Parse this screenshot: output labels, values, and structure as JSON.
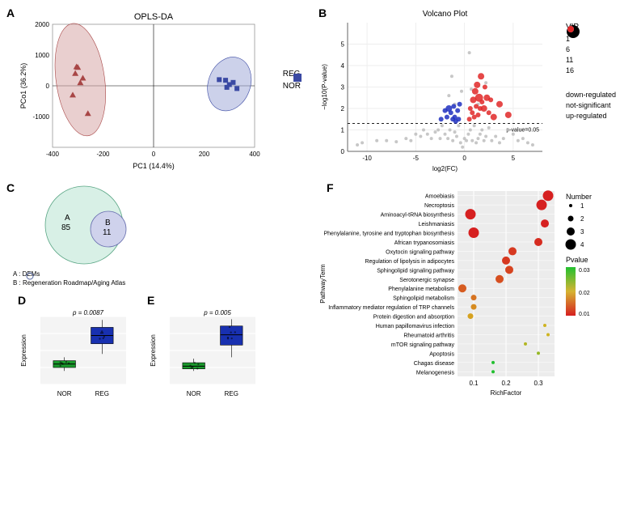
{
  "panelA": {
    "title": "OPLS-DA",
    "xlabel": "PC1 (14.4%)",
    "ylabel": "PCo1 (36.2%)",
    "xlim": [
      -400,
      400
    ],
    "ylim": [
      -2000,
      2000
    ],
    "xticks": [
      -400,
      -200,
      0,
      200,
      400
    ],
    "yticks": [
      -1000,
      0,
      1000,
      2000
    ],
    "reg_color": "#a84646",
    "nor_color": "#3a49a3",
    "reg_fill": "#d7a8a8",
    "nor_fill": "#a3abd9",
    "reg_points": [
      [
        -300,
        600
      ],
      [
        -310,
        400
      ],
      [
        -280,
        250
      ],
      [
        -305,
        620
      ],
      [
        -290,
        100
      ],
      [
        -320,
        -300
      ],
      [
        -260,
        -900
      ]
    ],
    "nor_points": [
      [
        260,
        200
      ],
      [
        285,
        180
      ],
      [
        300,
        40
      ],
      [
        315,
        110
      ],
      [
        330,
        -90
      ],
      [
        290,
        -50
      ]
    ],
    "legend": {
      "reg": "REG",
      "nor": "NOR"
    }
  },
  "panelB": {
    "title": "Volcano Plot",
    "xlabel": "log2(FC)",
    "ylabel": "−log10(P-value)",
    "xlim": [
      -12,
      8
    ],
    "ylim": [
      0,
      6
    ],
    "xticks": [
      -10,
      -5,
      0,
      5
    ],
    "yticks": [
      0,
      1,
      2,
      3,
      4,
      5
    ],
    "pline": 1.3,
    "pline_label": "p-value=0.05",
    "colors": {
      "down": "#2030c0",
      "not": "#bdbdbd",
      "up": "#e02828"
    },
    "vip_legend": {
      "title": "VIP",
      "levels": [
        {
          "v": 1,
          "r": 2.5
        },
        {
          "v": 6,
          "r": 4
        },
        {
          "v": 11,
          "r": 6
        },
        {
          "v": 16,
          "r": 8
        }
      ]
    },
    "col_legend": [
      [
        "down-regulated",
        "#2030c0"
      ],
      [
        "not-significant",
        "#bdbdbd"
      ],
      [
        "up-regulated",
        "#e02828"
      ]
    ],
    "grey_points": [
      [
        -11,
        0.3,
        2
      ],
      [
        -10.5,
        0.4,
        2
      ],
      [
        -9,
        0.5,
        2
      ],
      [
        -8,
        0.5,
        2
      ],
      [
        -7,
        0.45,
        2
      ],
      [
        -6,
        0.6,
        2
      ],
      [
        -5.5,
        0.5,
        2
      ],
      [
        -5,
        0.8,
        2
      ],
      [
        -4.5,
        0.7,
        2
      ],
      [
        -4.2,
        1.0,
        2
      ],
      [
        -3.8,
        0.8,
        2
      ],
      [
        -3.4,
        0.6,
        2
      ],
      [
        -3.0,
        0.9,
        2
      ],
      [
        -2.7,
        1.0,
        2
      ],
      [
        -2.5,
        0.6,
        2
      ],
      [
        -2.3,
        1.2,
        2
      ],
      [
        -2.0,
        0.8,
        2
      ],
      [
        -1.7,
        0.6,
        2
      ],
      [
        -1.5,
        1.0,
        2
      ],
      [
        -1.2,
        0.5,
        2
      ],
      [
        -1.0,
        0.9,
        2
      ],
      [
        -0.8,
        0.7,
        2
      ],
      [
        -0.6,
        1.2,
        2
      ],
      [
        -0.4,
        0.4,
        2
      ],
      [
        -0.2,
        0.2,
        2
      ],
      [
        0,
        0.6,
        2
      ],
      [
        0.2,
        0.5,
        2
      ],
      [
        0.4,
        0.8,
        2
      ],
      [
        0.6,
        1.0,
        2
      ],
      [
        0.8,
        0.5,
        2
      ],
      [
        1.0,
        1.2,
        2
      ],
      [
        1.2,
        0.4,
        2
      ],
      [
        1.4,
        0.6,
        2
      ],
      [
        1.6,
        0.8,
        2
      ],
      [
        1.8,
        1.0,
        2
      ],
      [
        2.0,
        0.5,
        2
      ],
      [
        2.2,
        0.7,
        2
      ],
      [
        2.5,
        1.1,
        2
      ],
      [
        2.8,
        0.5,
        2
      ],
      [
        3.2,
        0.7,
        2
      ],
      [
        3.6,
        0.4,
        2
      ],
      [
        4.0,
        0.6,
        2
      ],
      [
        4.5,
        1.0,
        2
      ],
      [
        5,
        0.8,
        2
      ],
      [
        5.5,
        0.5,
        2
      ],
      [
        6,
        0.6,
        2
      ],
      [
        6.5,
        0.4,
        2
      ],
      [
        7,
        0.3,
        2
      ],
      [
        -1.3,
        3.5,
        2
      ],
      [
        0.5,
        4.6,
        2
      ],
      [
        -0.3,
        2.8,
        2
      ],
      [
        -1.0,
        2.2,
        2
      ],
      [
        -1.6,
        2.6,
        2
      ],
      [
        2.2,
        3.2,
        2
      ],
      [
        1.4,
        2.2,
        2
      ],
      [
        0.7,
        2.9,
        2
      ]
    ],
    "blue_points": [
      [
        -2.4,
        1.5,
        3
      ],
      [
        -2.0,
        1.9,
        3
      ],
      [
        -1.8,
        1.6,
        3
      ],
      [
        -1.6,
        2.0,
        4
      ],
      [
        -1.4,
        1.8,
        3
      ],
      [
        -1.2,
        1.5,
        3
      ],
      [
        -1.1,
        2.1,
        3
      ],
      [
        -1.0,
        1.6,
        3
      ],
      [
        -0.9,
        1.4,
        3
      ],
      [
        -0.7,
        1.9,
        3
      ],
      [
        -0.6,
        1.5,
        3
      ],
      [
        -0.5,
        2.2,
        3
      ]
    ],
    "red_points": [
      [
        0.5,
        1.5,
        3
      ],
      [
        0.6,
        2.0,
        3
      ],
      [
        0.8,
        1.8,
        3
      ],
      [
        0.9,
        2.4,
        4
      ],
      [
        1.0,
        1.6,
        3
      ],
      [
        1.1,
        2.8,
        4
      ],
      [
        1.2,
        2.1,
        3
      ],
      [
        1.3,
        3.1,
        4
      ],
      [
        1.4,
        1.7,
        3
      ],
      [
        1.5,
        2.5,
        5
      ],
      [
        1.6,
        2.0,
        3
      ],
      [
        1.7,
        3.5,
        4
      ],
      [
        1.8,
        2.3,
        3
      ],
      [
        2.0,
        2.0,
        4
      ],
      [
        2.1,
        3.0,
        3
      ],
      [
        2.3,
        2.5,
        4
      ],
      [
        2.5,
        1.8,
        3
      ],
      [
        2.7,
        2.4,
        3
      ],
      [
        3.0,
        1.6,
        4
      ],
      [
        3.6,
        2.2,
        4
      ],
      [
        4.5,
        1.7,
        4
      ]
    ]
  },
  "panelC": {
    "A_label": "A",
    "A_count": "85",
    "B_label": "B",
    "B_count": "11",
    "A_color": "#d8f0e6",
    "B_color": "#cfd2ec",
    "legendA": "A : DEMs",
    "legendB": "B : Regeneration Roadmap/Aging Atlas"
  },
  "panelsDE": {
    "xlabels": [
      "NOR",
      "REG"
    ],
    "ylabel": "Expression",
    "nor_color": "#1a9a2c",
    "reg_color": "#1830b0",
    "D": {
      "pval": "p = 0.0087",
      "nor": {
        "min": 0.2,
        "q1": 0.25,
        "med": 0.3,
        "q3": 0.35,
        "max": 0.4
      },
      "reg": {
        "min": 0.45,
        "q1": 0.6,
        "med": 0.72,
        "q3": 0.84,
        "max": 0.95
      }
    },
    "E": {
      "pval": "p = 0.005",
      "nor": {
        "min": 0.2,
        "q1": 0.23,
        "med": 0.27,
        "q3": 0.32,
        "max": 0.38
      },
      "reg": {
        "min": 0.4,
        "q1": 0.58,
        "med": 0.73,
        "q3": 0.86,
        "max": 0.96
      }
    }
  },
  "panelF": {
    "xlabel": "RichFactor",
    "ylabel": "PathwayTerm",
    "xlim": [
      0.05,
      0.35
    ],
    "xticks": [
      0.1,
      0.2,
      0.3
    ],
    "number_legend": {
      "title": "Number",
      "levels": [
        {
          "v": 1,
          "r": 2
        },
        {
          "v": 2,
          "r": 3.5
        },
        {
          "v": 3,
          "r": 5
        },
        {
          "v": 4,
          "r": 6.5
        }
      ]
    },
    "pval_legend": {
      "title": "Pvalue",
      "min": 0.01,
      "max": 0.03,
      "low_color": "#d62020",
      "high_color": "#22c030"
    },
    "rows": [
      {
        "term": "Amoebiasis",
        "rf": 0.33,
        "n": 4,
        "p": 0.005
      },
      {
        "term": "Necroptosis",
        "rf": 0.31,
        "n": 4,
        "p": 0.005
      },
      {
        "term": "Aminoacyl-tRNA biosynthesis",
        "rf": 0.09,
        "n": 4,
        "p": 0.005
      },
      {
        "term": "Leishmaniasis",
        "rf": 0.32,
        "n": 3,
        "p": 0.005
      },
      {
        "term": "Phenylalanine, tyrosine and tryptophan biosynthesis",
        "rf": 0.1,
        "n": 4,
        "p": 0.005
      },
      {
        "term": "African trypanosomiasis",
        "rf": 0.3,
        "n": 3,
        "p": 0.006
      },
      {
        "term": "Oxytocin signaling pathway",
        "rf": 0.22,
        "n": 3,
        "p": 0.007
      },
      {
        "term": "Regulation of lipolysis in adipocytes",
        "rf": 0.2,
        "n": 3,
        "p": 0.007
      },
      {
        "term": "Sphingolipid signaling pathway",
        "rf": 0.21,
        "n": 3,
        "p": 0.008
      },
      {
        "term": "Serotonergic synapse",
        "rf": 0.18,
        "n": 3,
        "p": 0.009
      },
      {
        "term": "Phenylalanine metabolism",
        "rf": 0.065,
        "n": 3,
        "p": 0.01
      },
      {
        "term": "Sphingolipid metabolism",
        "rf": 0.1,
        "n": 2,
        "p": 0.012
      },
      {
        "term": "Inflammatory mediator regulation of TRP channels",
        "rf": 0.1,
        "n": 2,
        "p": 0.014
      },
      {
        "term": "Protein digestion and absorption",
        "rf": 0.09,
        "n": 2,
        "p": 0.016
      },
      {
        "term": "Human papillomavirus infection",
        "rf": 0.32,
        "n": 1,
        "p": 0.018
      },
      {
        "term": "Rheumatoid arthritis",
        "rf": 0.33,
        "n": 1,
        "p": 0.018
      },
      {
        "term": "mTOR signaling pathway",
        "rf": 0.26,
        "n": 1,
        "p": 0.02
      },
      {
        "term": "Apoptosis",
        "rf": 0.3,
        "n": 1,
        "p": 0.022
      },
      {
        "term": "Chagas disease",
        "rf": 0.16,
        "n": 1,
        "p": 0.03
      },
      {
        "term": "Melanogenesis",
        "rf": 0.16,
        "n": 1,
        "p": 0.03
      }
    ]
  },
  "labels": {
    "A": "A",
    "B": "B",
    "C": "C",
    "D": "D",
    "E": "E",
    "F": "F"
  }
}
